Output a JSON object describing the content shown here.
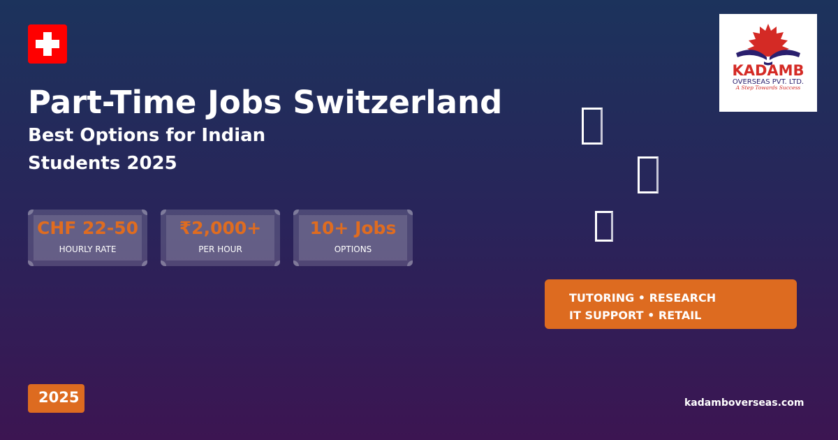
{
  "header": {
    "title": "Part-Time Jobs Switzerland",
    "subtitle": "Best Options for Indian Students 2025"
  },
  "stats": [
    {
      "value": "CHF 22-50",
      "label": "HOURLY RATE"
    },
    {
      "value": "₹2,000+",
      "label": "PER HOUR"
    },
    {
      "value": "10+ Jobs",
      "label": "OPTIONS"
    }
  ],
  "banner": {
    "line1": "TUTORING • RESEARCH",
    "line2": "IT SUPPORT • RETAIL"
  },
  "year_badge": "2025",
  "website": "kadamboverseas.com",
  "logo": {
    "name": "KADAMB",
    "line2": "OVERSEAS PVT. LTD.",
    "tagline": "A Step Towards Success"
  },
  "colors": {
    "accent": "#dd6b20",
    "flag": "#ff0000",
    "brand_red": "#d42a25",
    "brand_navy": "#2a1f6e"
  },
  "icons": [
    "swiss-flag-icon",
    "missing-glyph-icon",
    "missing-glyph-icon",
    "missing-glyph-icon"
  ]
}
